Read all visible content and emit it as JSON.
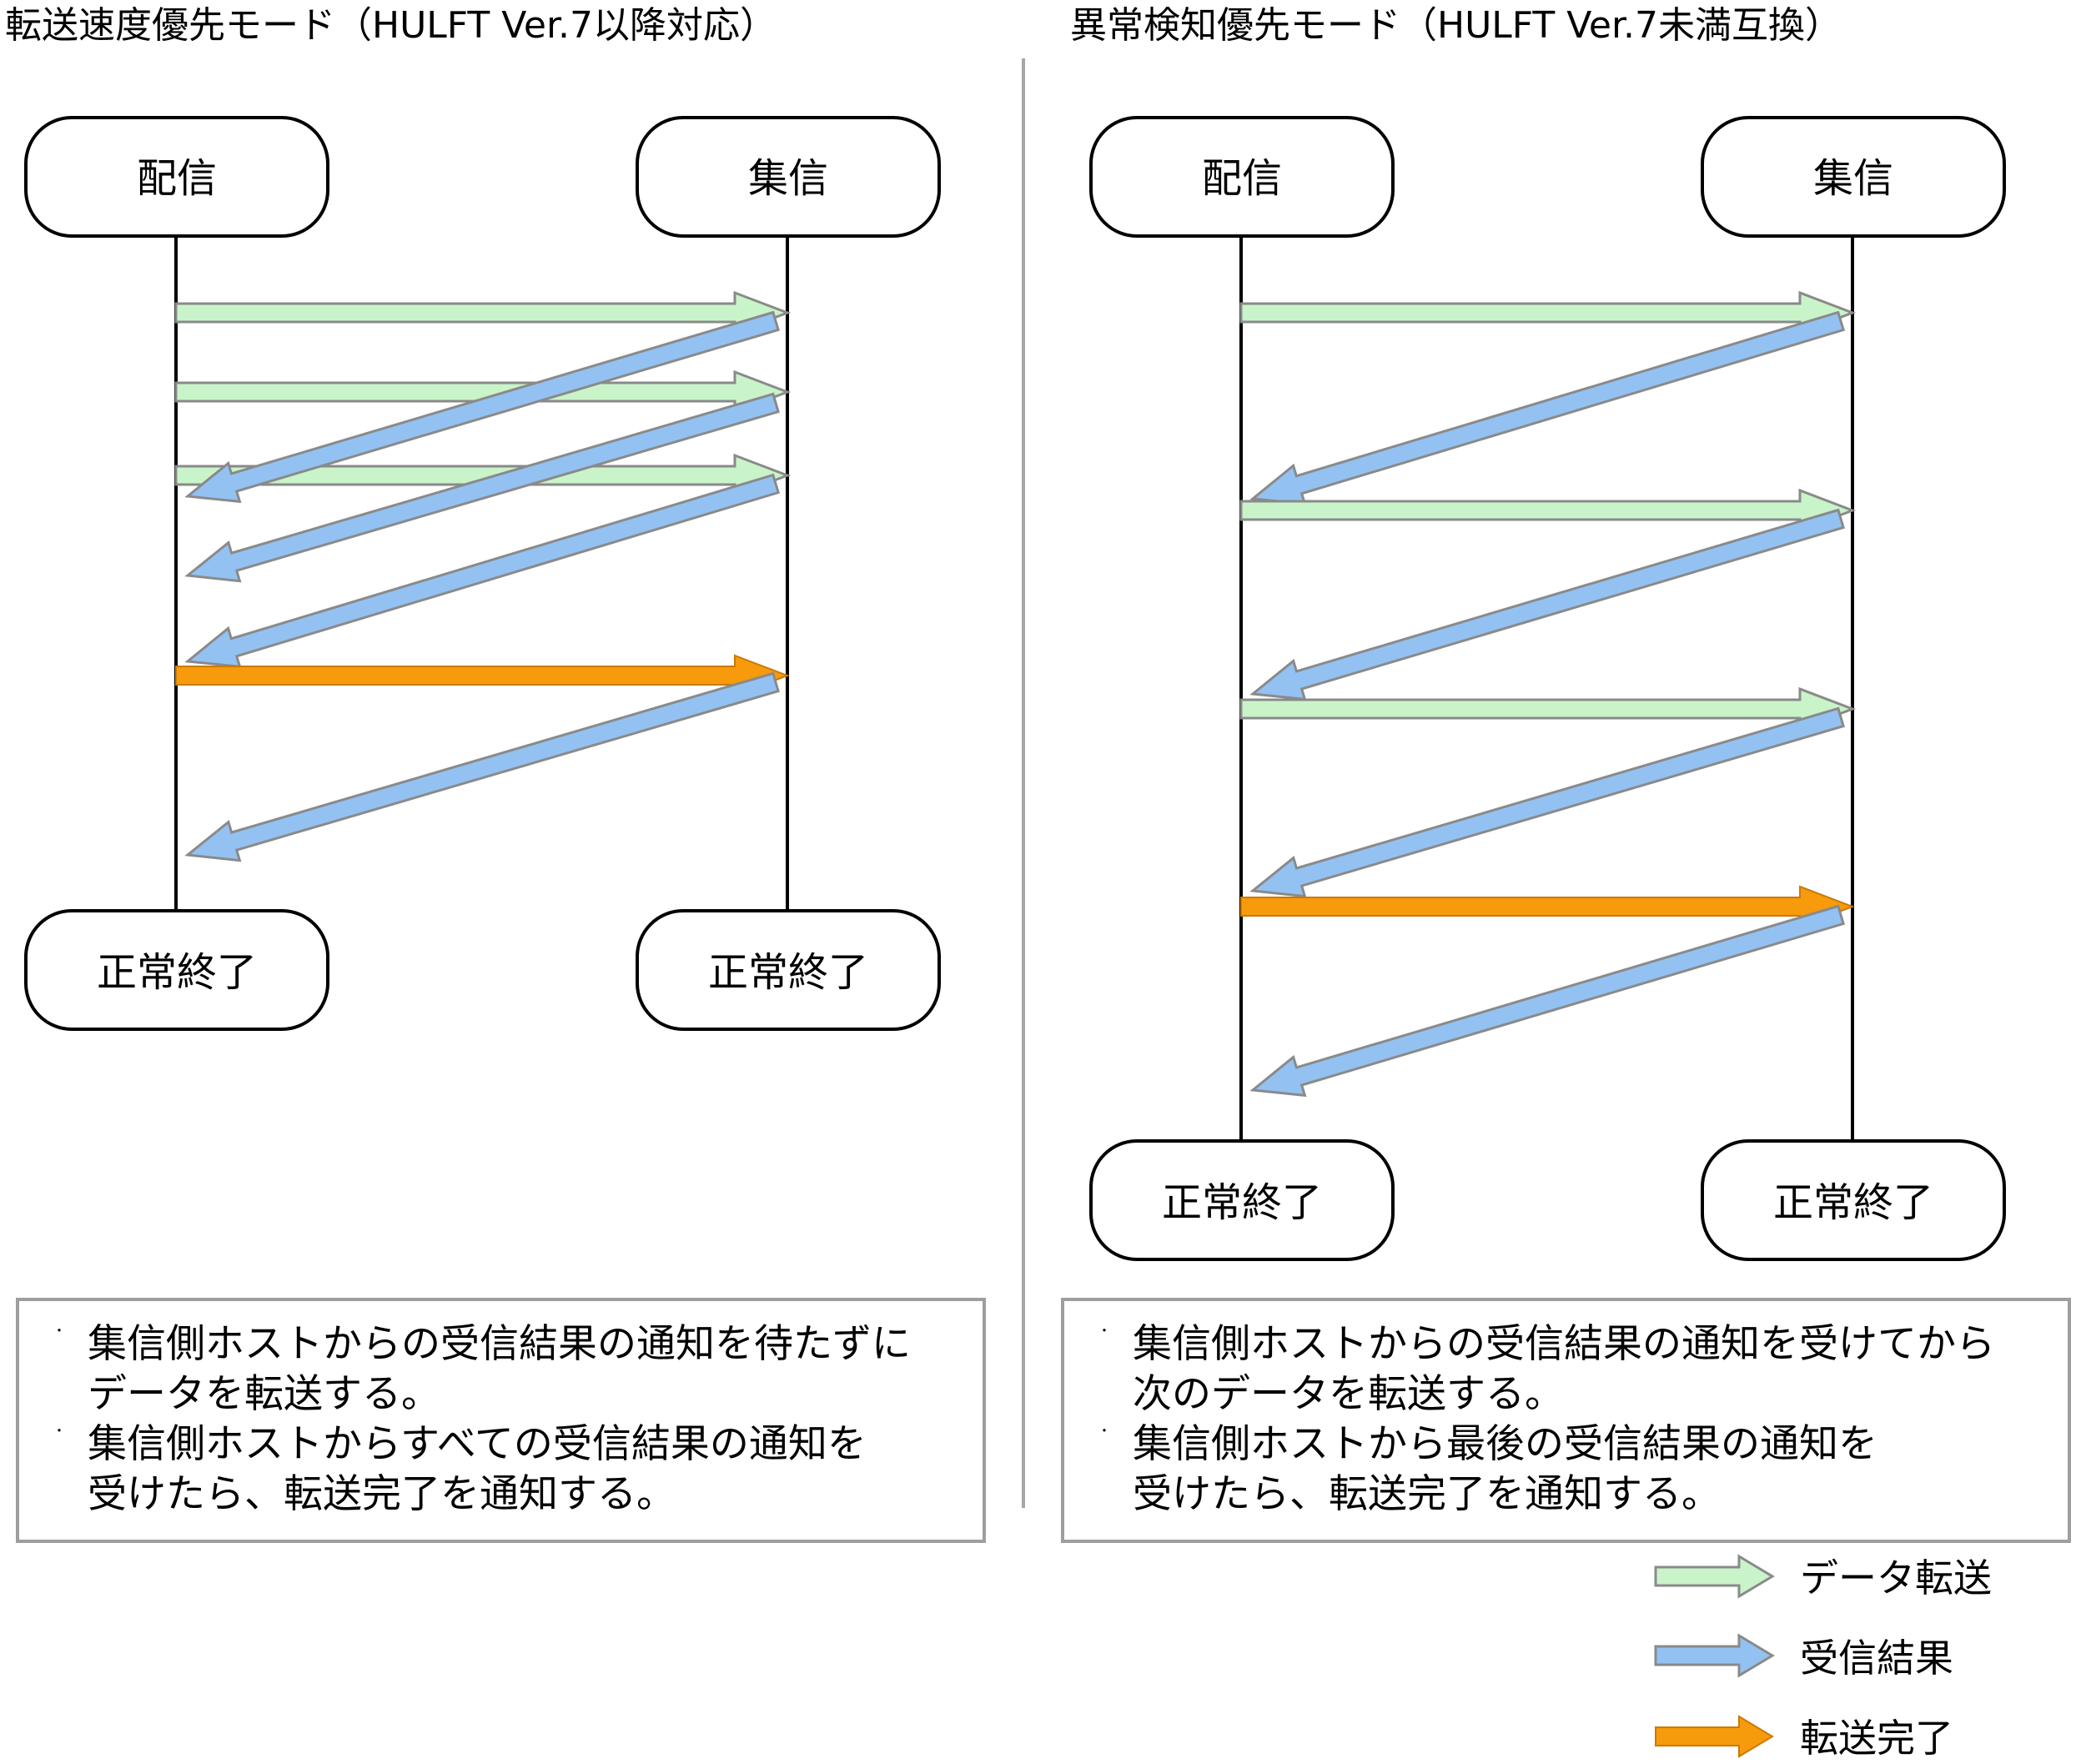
{
  "left_panel": {
    "title": "転送速度優先モード（HULFT Ver.7以降対応）",
    "sender_label": "配信",
    "receiver_label": "集信",
    "sender_end_label": "正常終了",
    "receiver_end_label": "正常終了",
    "notes": [
      {
        "bullet": "・",
        "lines": [
          "集信側ホストからの受信結果の通知を待たずに",
          "データを転送する。"
        ]
      },
      {
        "bullet": "・",
        "lines": [
          "集信側ホストからすべての受信結果の通知を",
          "受けたら、転送完了を通知する。"
        ]
      }
    ]
  },
  "right_panel": {
    "title": "異常検知優先モード（HULFT Ver.7未満互換）",
    "sender_label": "配信",
    "receiver_label": "集信",
    "sender_end_label": "正常終了",
    "receiver_end_label": "正常終了",
    "notes": [
      {
        "bullet": "・",
        "lines": [
          "集信側ホストからの受信結果の通知を受けてから",
          "次のデータを転送する。"
        ]
      },
      {
        "bullet": "・",
        "lines": [
          "集信側ホストから最後の受信結果の通知を",
          "受けたら、転送完了を通知する。"
        ]
      }
    ]
  },
  "legend": [
    {
      "label": "データ転送",
      "kind": "data",
      "color": "#c9f4c9"
    },
    {
      "label": "受信結果",
      "kind": "result",
      "color": "#93c2f2"
    },
    {
      "label": "転送完了",
      "kind": "complete",
      "color": "#f79a0c"
    }
  ],
  "colors": {
    "data_fill": "#c9f4c9",
    "result_fill": "#93c2f2",
    "complete_fill": "#f79a0c",
    "arrow_stroke": "#8a8a8a",
    "divider": "#a6a6a6"
  }
}
